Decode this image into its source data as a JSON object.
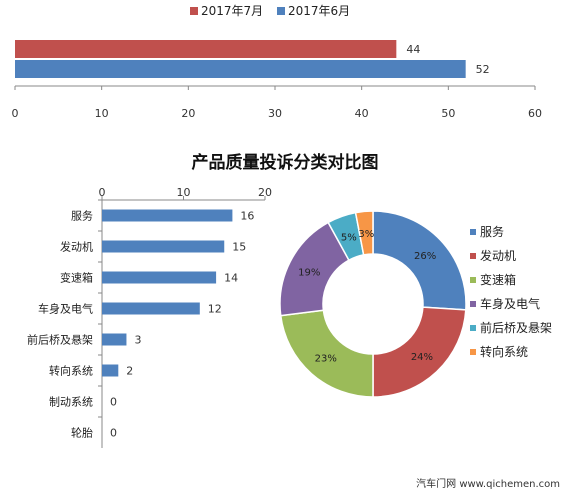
{
  "chart_data": [
    {
      "type": "bar",
      "orientation": "horizontal",
      "series": [
        {
          "name": "2017年7月",
          "values": [
            44
          ],
          "color": "#c0504d"
        },
        {
          "name": "2017年6月",
          "values": [
            52
          ],
          "color": "#4f81bd"
        }
      ],
      "xlim": [
        0,
        60
      ],
      "xticks": [
        "0",
        "10",
        "20",
        "30",
        "40",
        "50",
        "60"
      ],
      "legend": "top-center"
    },
    {
      "type": "bar",
      "orientation": "horizontal",
      "title": "产品质量投诉分类对比图",
      "categories": [
        "服务",
        "发动机",
        "变速箱",
        "车身及电气",
        "前后桥及悬架",
        "转向系统",
        "制动系统",
        "轮胎"
      ],
      "values": [
        16,
        15,
        14,
        12,
        3,
        2,
        0,
        0
      ],
      "xlim": [
        0,
        20
      ],
      "xticks": [
        "0",
        "10",
        "20"
      ],
      "color": "#4f81bd"
    },
    {
      "type": "pie",
      "donut": true,
      "slices": [
        {
          "label": "服务",
          "value": 26,
          "text": "26%",
          "color": "#4f81bd"
        },
        {
          "label": "发动机",
          "value": 24,
          "text": "24%",
          "color": "#c0504d"
        },
        {
          "label": "变速箱",
          "value": 23,
          "text": "23%",
          "color": "#9bbb59"
        },
        {
          "label": "车身及电气",
          "value": 19,
          "text": "19%",
          "color": "#8064a2"
        },
        {
          "label": "前后桥及悬架",
          "value": 5,
          "text": "5%",
          "color": "#4bacc6"
        },
        {
          "label": "转向系统",
          "value": 3,
          "text": "3%",
          "color": "#f79646"
        }
      ],
      "legend": "right"
    }
  ],
  "watermark": "汽车门网 www.qichemen.com"
}
